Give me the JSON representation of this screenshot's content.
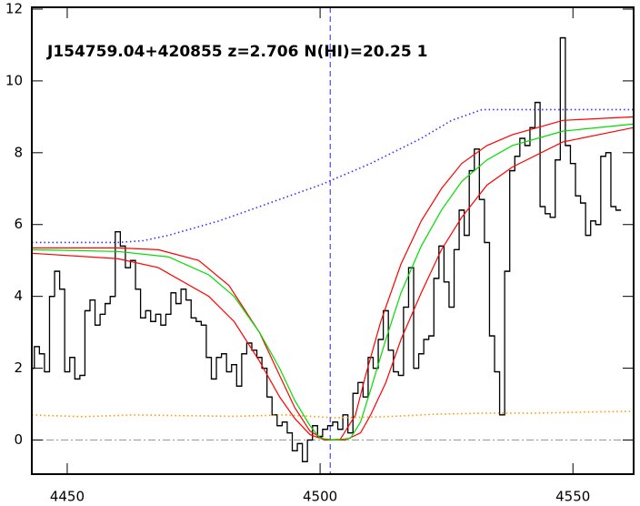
{
  "chart_data": {
    "type": "line",
    "title": "J154759.04+420855 z=2.706 N(HI)=20.25 1",
    "xlim": [
      4443,
      4562
    ],
    "ylim": [
      -0.95,
      12.05
    ],
    "xticks": [
      4450,
      4500,
      4550
    ],
    "yticks": [
      0,
      2,
      4,
      6,
      8,
      10,
      12
    ],
    "hline": 0,
    "vline": 4502,
    "series": [
      {
        "color": "#000000",
        "style": "step",
        "x": [
          4443,
          4444,
          4445,
          4446,
          4447,
          4448,
          4449,
          4450,
          4451,
          4452,
          4453,
          4454,
          4455,
          4456,
          4457,
          4458,
          4459,
          4460,
          4461,
          4462,
          4463,
          4464,
          4465,
          4466,
          4467,
          4468,
          4469,
          4470,
          4471,
          4472,
          4473,
          4474,
          4475,
          4476,
          4477,
          4478,
          4479,
          4480,
          4481,
          4482,
          4483,
          4484,
          4485,
          4486,
          4487,
          4488,
          4489,
          4490,
          4491,
          4492,
          4493,
          4494,
          4495,
          4496,
          4497,
          4498,
          4499,
          4500,
          4501,
          4502,
          4503,
          4504,
          4505,
          4506,
          4507,
          4508,
          4509,
          4510,
          4511,
          4512,
          4513,
          4514,
          4515,
          4516,
          4517,
          4518,
          4519,
          4520,
          4521,
          4522,
          4523,
          4524,
          4525,
          4526,
          4527,
          4528,
          4529,
          4530,
          4531,
          4532,
          4533,
          4534,
          4535,
          4536,
          4537,
          4538,
          4539,
          4540,
          4541,
          4542,
          4543,
          4544,
          4545,
          4546,
          4547,
          4548,
          4549,
          4550,
          4551,
          4552,
          4553,
          4554,
          4555,
          4556,
          4557,
          4558,
          4559
        ],
        "values": [
          2.0,
          2.6,
          2.4,
          1.9,
          4.0,
          4.7,
          4.2,
          1.9,
          2.3,
          1.7,
          1.8,
          3.6,
          3.9,
          3.2,
          3.5,
          3.8,
          4.0,
          5.8,
          5.4,
          4.8,
          5.0,
          4.2,
          3.4,
          3.6,
          3.3,
          3.5,
          3.2,
          3.5,
          4.1,
          3.8,
          4.2,
          3.9,
          3.4,
          3.3,
          3.2,
          2.3,
          1.7,
          2.3,
          2.4,
          1.9,
          2.1,
          1.5,
          2.4,
          2.7,
          2.5,
          2.3,
          2.0,
          1.2,
          0.7,
          0.4,
          0.5,
          0.2,
          -0.3,
          -0.1,
          -0.6,
          0.0,
          0.4,
          0.1,
          0.3,
          0.4,
          0.5,
          0.3,
          0.7,
          0.2,
          1.3,
          1.6,
          1.2,
          2.3,
          2.0,
          2.8,
          3.6,
          2.5,
          1.9,
          1.8,
          3.7,
          4.8,
          2.0,
          2.4,
          2.8,
          2.9,
          4.5,
          5.4,
          4.4,
          3.7,
          5.3,
          6.4,
          5.7,
          7.5,
          8.1,
          6.7,
          5.5,
          2.9,
          1.9,
          0.7,
          4.7,
          7.5,
          7.9,
          8.4,
          8.2,
          8.7,
          9.4,
          6.5,
          6.3,
          6.2,
          7.8,
          11.2,
          8.2,
          7.7,
          6.8,
          6.6,
          5.7,
          6.1,
          6.0,
          7.9,
          8.0,
          6.5,
          6.4
        ]
      },
      {
        "color": "#3a2cff",
        "style": "dotted",
        "x": [
          4443,
          4460,
          4465,
          4470,
          4480,
          4490,
          4500,
          4510,
          4520,
          4526,
          4532,
          4562
        ],
        "values": [
          5.5,
          5.5,
          5.55,
          5.7,
          6.1,
          6.6,
          7.1,
          7.7,
          8.4,
          8.9,
          9.2,
          9.2
        ]
      },
      {
        "color": "#ff0000",
        "style": "solid",
        "x": [
          4443,
          4460,
          4468,
          4476,
          4482,
          4488,
          4492,
          4495,
          4498,
          4501,
          4504,
          4507,
          4509,
          4512,
          4516,
          4520,
          4524,
          4528,
          4533,
          4538,
          4548,
          4562
        ],
        "values": [
          5.35,
          5.35,
          5.3,
          5.0,
          4.3,
          3.0,
          1.8,
          0.9,
          0.25,
          0,
          0.02,
          0.7,
          1.8,
          3.3,
          4.9,
          6.1,
          7.0,
          7.7,
          8.2,
          8.5,
          8.9,
          9.0
        ]
      },
      {
        "color": "#ff0000",
        "style": "solid",
        "x": [
          4443,
          4460,
          4468,
          4478,
          4483,
          4488,
          4492,
          4495,
          4498,
          4501,
          4505,
          4508,
          4510,
          4513,
          4516,
          4520,
          4524,
          4528,
          4533,
          4538,
          4548,
          4562
        ],
        "values": [
          5.2,
          5.05,
          4.8,
          4.0,
          3.3,
          2.2,
          1.2,
          0.6,
          0.15,
          0,
          0,
          0.2,
          0.7,
          1.6,
          2.8,
          4.1,
          5.3,
          6.2,
          7.1,
          7.6,
          8.3,
          8.7
        ]
      },
      {
        "color": "#00dd00",
        "style": "solid",
        "x": [
          4443,
          4460,
          4470,
          4478,
          4483,
          4488,
          4492,
          4495,
          4498,
          4500,
          4503,
          4506,
          4508,
          4510,
          4513,
          4516,
          4520,
          4524,
          4528,
          4533,
          4538,
          4548,
          4562
        ],
        "values": [
          5.3,
          5.25,
          5.1,
          4.6,
          4.0,
          3.0,
          2.0,
          1.1,
          0.4,
          0.05,
          0,
          0.05,
          0.5,
          1.4,
          2.8,
          4.1,
          5.4,
          6.4,
          7.2,
          7.8,
          8.2,
          8.6,
          8.8
        ]
      },
      {
        "color": "#ff9900",
        "style": "dotted",
        "x": [
          4443,
          4453,
          4463,
          4473,
          4483,
          4493,
          4503,
          4513,
          4523,
          4533,
          4543,
          4553,
          4562
        ],
        "values": [
          0.7,
          0.65,
          0.7,
          0.68,
          0.66,
          0.7,
          0.62,
          0.65,
          0.72,
          0.75,
          0.75,
          0.78,
          0.8
        ]
      }
    ]
  }
}
